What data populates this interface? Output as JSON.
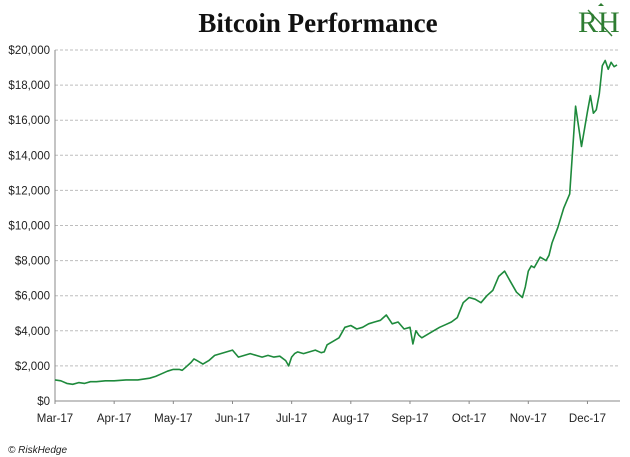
{
  "chart_data": {
    "type": "line",
    "title": "Bitcoin Performance",
    "xlabel": "",
    "ylabel": "",
    "ylim": [
      0,
      20000
    ],
    "y_ticks": [
      0,
      2000,
      4000,
      6000,
      8000,
      10000,
      12000,
      14000,
      16000,
      18000,
      20000
    ],
    "y_tick_labels": [
      "$0",
      "$2,000",
      "$4,000",
      "$6,000",
      "$8,000",
      "$10,000",
      "$12,000",
      "$14,000",
      "$16,000",
      "$18,000",
      "$20,000"
    ],
    "x_tick_labels": [
      "Mar-17",
      "Apr-17",
      "May-17",
      "Jun-17",
      "Jul-17",
      "Aug-17",
      "Sep-17",
      "Oct-17",
      "Nov-17",
      "Dec-17"
    ],
    "x_label_months": [
      0,
      1,
      2,
      3,
      4,
      5,
      6,
      7,
      8,
      9
    ],
    "xlim_months": [
      0,
      9.55
    ],
    "grid": "horizontal-dashed",
    "line_color": "#1e8a3c",
    "series": [
      {
        "name": "Bitcoin",
        "x_months": [
          0.0,
          0.1,
          0.2,
          0.3,
          0.4,
          0.5,
          0.6,
          0.7,
          0.85,
          1.0,
          1.2,
          1.4,
          1.5,
          1.6,
          1.7,
          1.8,
          1.9,
          2.0,
          2.1,
          2.15,
          2.2,
          2.3,
          2.35,
          2.4,
          2.5,
          2.6,
          2.7,
          2.8,
          2.9,
          3.0,
          3.1,
          3.2,
          3.3,
          3.4,
          3.5,
          3.6,
          3.7,
          3.8,
          3.9,
          3.95,
          4.0,
          4.05,
          4.1,
          4.2,
          4.3,
          4.4,
          4.5,
          4.55,
          4.6,
          4.7,
          4.8,
          4.9,
          5.0,
          5.1,
          5.2,
          5.3,
          5.4,
          5.5,
          5.6,
          5.7,
          5.8,
          5.85,
          5.9,
          6.0,
          6.05,
          6.1,
          6.15,
          6.2,
          6.3,
          6.4,
          6.5,
          6.6,
          6.7,
          6.8,
          6.9,
          7.0,
          7.1,
          7.2,
          7.3,
          7.4,
          7.5,
          7.6,
          7.7,
          7.8,
          7.9,
          7.95,
          8.0,
          8.05,
          8.1,
          8.2,
          8.3,
          8.35,
          8.4,
          8.5,
          8.6,
          8.7,
          8.8,
          8.9,
          8.95,
          9.0,
          9.05,
          9.1,
          9.15,
          9.2,
          9.25,
          9.3,
          9.35,
          9.4,
          9.45,
          9.5
        ],
        "values": [
          1200,
          1150,
          1000,
          950,
          1050,
          1000,
          1100,
          1100,
          1150,
          1150,
          1200,
          1200,
          1250,
          1300,
          1400,
          1550,
          1700,
          1800,
          1800,
          1750,
          1900,
          2200,
          2400,
          2300,
          2100,
          2300,
          2600,
          2700,
          2800,
          2900,
          2500,
          2600,
          2700,
          2600,
          2500,
          2600,
          2500,
          2550,
          2300,
          2000,
          2500,
          2700,
          2800,
          2700,
          2800,
          2900,
          2750,
          2800,
          3200,
          3400,
          3600,
          4200,
          4300,
          4100,
          4200,
          4400,
          4500,
          4600,
          4900,
          4400,
          4500,
          4300,
          4100,
          4200,
          3250,
          4000,
          3750,
          3600,
          3800,
          4000,
          4200,
          4350,
          4500,
          4750,
          5600,
          5900,
          5800,
          5600,
          6000,
          6300,
          7100,
          7400,
          6800,
          6200,
          5900,
          6500,
          7400,
          7700,
          7600,
          8200,
          8000,
          8300,
          9000,
          9900,
          11000,
          11800,
          16800,
          14500,
          15500,
          16500,
          17400,
          16400,
          16600,
          17500,
          19100,
          19400,
          18900,
          19300,
          19050,
          19150
        ]
      }
    ]
  },
  "logo": {
    "text": "RH"
  },
  "copyright": "© RiskHedge"
}
